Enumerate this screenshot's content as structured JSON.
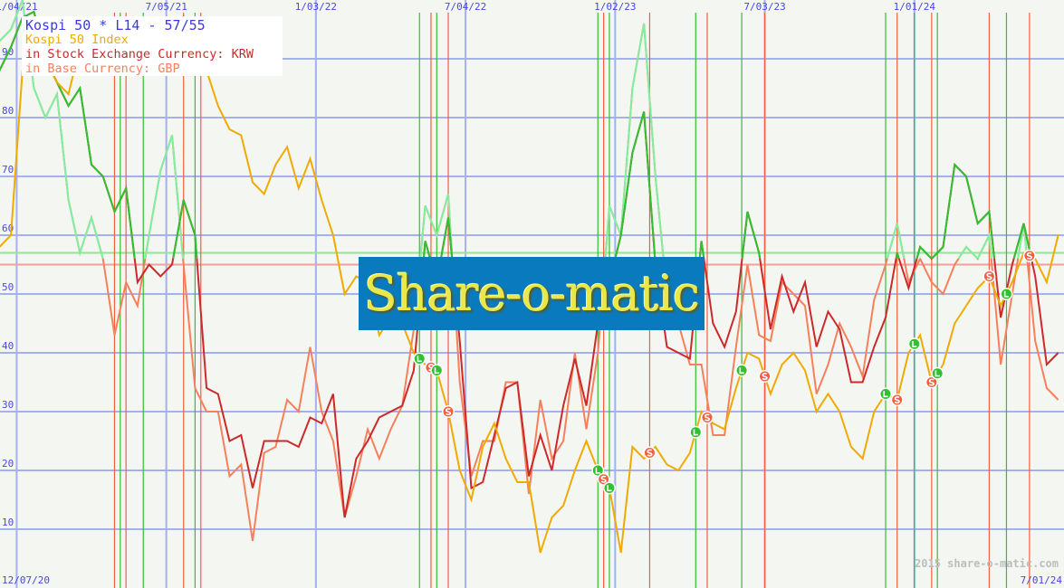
{
  "chart_data": {
    "type": "line",
    "title": "Kospi 50 * L14 - 57/55",
    "legend": [
      {
        "label": "Kospi 50 Index",
        "color": "#f0aa00"
      },
      {
        "label": "in Stock Exchange Currency: KRW",
        "color": "#cc2a2a"
      },
      {
        "label": "in Base Currency: GBP",
        "color": "#f7805c"
      }
    ],
    "legend_placement": "top-left",
    "x_range": [
      "2020-12-07",
      "2024-07-01"
    ],
    "x_ticks_top": [
      "1/04/21",
      "7/05/21",
      "1/03/22",
      "7/04/22",
      "1/02/23",
      "7/03/23",
      "1/01/24"
    ],
    "x_tick_dates": [
      "2021-01-04",
      "2021-07-05",
      "2022-01-03",
      "2022-07-04",
      "2023-01-02",
      "2023-07-03",
      "2024-01-01"
    ],
    "x_label_start": "12/07/20",
    "x_label_end": "7/01/24",
    "ylim": [
      0,
      100
    ],
    "y_ticks": [
      10,
      20,
      30,
      40,
      50,
      60,
      70,
      80,
      90
    ],
    "grid": true,
    "thresholds": {
      "long": 57,
      "short": 55,
      "long_color": "#90e890",
      "short_color": "#f0a0a0"
    },
    "x": [
      "2020-12-14",
      "2020-12-28",
      "2021-01-11",
      "2021-01-25",
      "2021-02-08",
      "2021-02-22",
      "2021-03-08",
      "2021-03-22",
      "2021-04-05",
      "2021-04-19",
      "2021-05-03",
      "2021-05-17",
      "2021-05-31",
      "2021-06-14",
      "2021-06-28",
      "2021-07-12",
      "2021-07-26",
      "2021-08-09",
      "2021-08-23",
      "2021-09-06",
      "2021-09-20",
      "2021-10-04",
      "2021-10-18",
      "2021-11-01",
      "2021-11-15",
      "2021-11-29",
      "2021-12-13",
      "2021-12-27",
      "2022-01-10",
      "2022-01-24",
      "2022-02-07",
      "2022-02-21",
      "2022-03-07",
      "2022-03-21",
      "2022-04-04",
      "2022-04-18",
      "2022-05-02",
      "2022-05-16",
      "2022-05-30",
      "2022-06-13",
      "2022-06-27",
      "2022-07-11",
      "2022-07-25",
      "2022-08-08",
      "2022-08-22",
      "2022-09-05",
      "2022-09-19",
      "2022-10-03",
      "2022-10-17",
      "2022-10-31",
      "2022-11-14",
      "2022-11-28",
      "2022-12-12",
      "2022-12-26",
      "2023-01-09",
      "2023-01-23",
      "2023-02-06",
      "2023-02-20",
      "2023-03-06",
      "2023-03-20",
      "2023-04-03",
      "2023-04-17",
      "2023-05-01",
      "2023-05-15",
      "2023-05-29",
      "2023-06-12",
      "2023-06-26",
      "2023-07-10",
      "2023-07-24",
      "2023-08-07",
      "2023-08-21",
      "2023-09-04",
      "2023-09-18",
      "2023-10-02",
      "2023-10-16",
      "2023-10-30",
      "2023-11-13",
      "2023-11-27",
      "2023-12-11",
      "2023-12-25",
      "2024-01-08",
      "2024-01-22",
      "2024-02-05",
      "2024-02-19",
      "2024-03-04",
      "2024-03-18",
      "2024-04-01",
      "2024-04-15",
      "2024-04-29",
      "2024-05-13",
      "2024-05-27",
      "2024-06-10",
      "2024-06-24"
    ],
    "series": [
      {
        "name": "Kospi 50 Index",
        "color": "#f0aa00",
        "values": [
          58,
          60,
          88,
          92,
          90,
          86,
          84,
          92,
          88,
          90,
          94,
          90,
          92,
          88,
          90,
          93,
          90,
          92,
          88,
          82,
          78,
          77,
          69,
          67,
          72,
          75,
          68,
          73,
          66,
          60,
          50,
          53,
          52,
          43,
          46,
          45,
          40,
          38,
          37,
          30,
          20,
          15,
          24,
          28,
          22,
          18,
          18,
          6,
          12,
          14,
          20,
          25,
          20,
          17,
          6,
          24,
          22,
          24,
          21,
          20,
          23,
          30,
          28,
          27,
          34,
          40,
          39,
          33,
          38,
          40,
          37,
          30,
          33,
          30,
          24,
          22,
          30,
          33,
          32,
          40,
          43,
          35,
          38,
          45,
          48,
          51,
          53,
          48,
          52,
          57,
          56,
          52,
          60
        ]
      },
      {
        "name": "in Stock Exchange Currency: KRW",
        "color": "#cc2a2a",
        "above_color": "#30c030",
        "values": [
          88,
          92,
          97,
          98,
          90,
          86,
          82,
          85,
          72,
          70,
          64,
          68,
          52,
          55,
          53,
          55,
          66,
          60,
          34,
          33,
          25,
          26,
          17,
          25,
          25,
          25,
          24,
          29,
          28,
          33,
          12,
          22,
          25,
          29,
          30,
          31,
          37,
          59,
          52,
          63,
          42,
          17,
          18,
          26,
          34,
          35,
          19,
          26,
          20,
          31,
          39,
          31,
          45,
          52,
          60,
          74,
          81,
          55,
          41,
          40,
          39,
          59,
          45,
          41,
          47,
          64,
          57,
          44,
          53,
          47,
          52,
          41,
          47,
          44,
          35,
          35,
          41,
          46,
          57,
          51,
          58,
          56,
          58,
          72,
          70,
          62,
          64,
          46,
          55,
          62,
          53,
          38,
          40
        ]
      },
      {
        "name": "in Base Currency: GBP",
        "color": "#f7805c",
        "above_color": "#80f0a0",
        "values": [
          93,
          95,
          100,
          85,
          80,
          84,
          66,
          57,
          63,
          56,
          43,
          52,
          48,
          60,
          71,
          77,
          55,
          34,
          30,
          30,
          19,
          21,
          8,
          23,
          24,
          32,
          30,
          41,
          30,
          25,
          12,
          19,
          27,
          22,
          27,
          31,
          44,
          65,
          60,
          67,
          35,
          19,
          25,
          25,
          35,
          35,
          16,
          32,
          22,
          25,
          40,
          27,
          40,
          65,
          60,
          85,
          96,
          70,
          50,
          45,
          38,
          38,
          26,
          26,
          41,
          55,
          43,
          42,
          52,
          50,
          48,
          33,
          38,
          45,
          41,
          36,
          49,
          55,
          62,
          52,
          56,
          52,
          50,
          55,
          58,
          56,
          60,
          38,
          50,
          62,
          42,
          34,
          32
        ]
      }
    ],
    "signals": [
      {
        "type": "S",
        "date": "2021-05-03"
      },
      {
        "type": "L",
        "date": "2021-05-10"
      },
      {
        "type": "S",
        "date": "2021-05-17"
      },
      {
        "type": "L",
        "date": "2021-06-07"
      },
      {
        "type": "S",
        "date": "2021-07-26"
      },
      {
        "type": "L",
        "date": "2021-08-09"
      },
      {
        "type": "S",
        "date": "2021-08-16"
      },
      {
        "type": "L",
        "date": "2022-05-09"
      },
      {
        "type": "S",
        "date": "2022-05-23"
      },
      {
        "type": "L",
        "date": "2022-05-30"
      },
      {
        "type": "S",
        "date": "2022-06-13"
      },
      {
        "type": "L",
        "date": "2022-12-12"
      },
      {
        "type": "S",
        "date": "2022-12-19"
      },
      {
        "type": "L",
        "date": "2022-12-26"
      },
      {
        "type": "S",
        "date": "2023-02-13"
      },
      {
        "type": "L",
        "date": "2023-04-10"
      },
      {
        "type": "S",
        "date": "2023-04-24"
      },
      {
        "type": "L",
        "date": "2023-06-05"
      },
      {
        "type": "S",
        "date": "2023-07-03"
      },
      {
        "type": "L",
        "date": "2023-11-27"
      },
      {
        "type": "S",
        "date": "2023-12-11"
      },
      {
        "type": "L",
        "date": "2024-01-01"
      },
      {
        "type": "S",
        "date": "2024-01-22"
      },
      {
        "type": "L",
        "date": "2024-01-29"
      },
      {
        "type": "S",
        "date": "2024-04-01"
      },
      {
        "type": "L",
        "date": "2024-04-22"
      },
      {
        "type": "S",
        "date": "2024-05-20"
      }
    ],
    "signal_colors": {
      "L": "#30c030",
      "S": "#f06040"
    }
  },
  "legend_title": "Kospi 50 * L14 - 57/55",
  "legend_lines": [
    "Kospi 50 Index",
    "in Stock Exchange Currency: KRW",
    "in Base Currency: GBP"
  ],
  "watermark": "Share-o-matic",
  "copyright": "2015 share-o-matic.com",
  "x_label_start": "12/07/20",
  "x_label_end": "7/01/24"
}
